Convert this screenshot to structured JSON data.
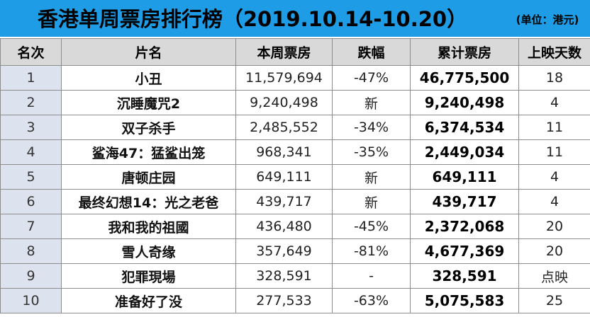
{
  "header": {
    "title": "香港单周票房排行榜（2019.10.14-10.20）",
    "unit": "(单位：港元)"
  },
  "table": {
    "columns": [
      "名次",
      "片名",
      "本周票房",
      "跌幅",
      "累计票房",
      "上映天数"
    ],
    "rows": [
      {
        "rank": "1",
        "name": "小丑",
        "weekly": "11,579,694",
        "change": "-47%",
        "total": "46,775,500",
        "days": "18"
      },
      {
        "rank": "2",
        "name": "沉睡魔咒2",
        "weekly": "9,240,498",
        "change": "新",
        "total": "9,240,498",
        "days": "4"
      },
      {
        "rank": "3",
        "name": "双子杀手",
        "weekly": "2,485,552",
        "change": "-34%",
        "total": "6,374,534",
        "days": "11"
      },
      {
        "rank": "4",
        "name": "鲨海47：猛鲨出笼",
        "weekly": "968,341",
        "change": "-35%",
        "total": "2,449,034",
        "days": "11"
      },
      {
        "rank": "5",
        "name": "唐顿庄园",
        "weekly": "649,111",
        "change": "新",
        "total": "649,111",
        "days": "4"
      },
      {
        "rank": "6",
        "name": "最终幻想14：光之老爸",
        "weekly": "439,717",
        "change": "新",
        "total": "439,717",
        "days": "4"
      },
      {
        "rank": "7",
        "name": "我和我的祖國",
        "weekly": "436,480",
        "change": "-45%",
        "total": "2,372,068",
        "days": "20"
      },
      {
        "rank": "8",
        "name": "雪人奇缘",
        "weekly": "357,649",
        "change": "-81%",
        "total": "4,677,369",
        "days": "20"
      },
      {
        "rank": "9",
        "name": "犯罪現場",
        "weekly": "328,591",
        "change": "-",
        "total": "328,591",
        "days": "点映"
      },
      {
        "rank": "10",
        "name": "准备好了没",
        "weekly": "277,533",
        "change": "-63%",
        "total": "5,075,583",
        "days": "25"
      }
    ]
  },
  "colors": {
    "title_bar": "#1e9ce6",
    "header_row": "#d9d9d9",
    "rank_cell": "#dde3ee",
    "grid": "#8c8c8c"
  }
}
